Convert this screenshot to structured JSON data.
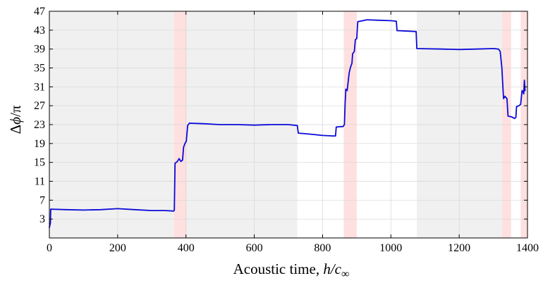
{
  "chart_data": {
    "type": "line",
    "title": "",
    "xlabel": {
      "prefix": "Acoustic time, ",
      "italic": "h/c",
      "subscript": "∞"
    },
    "ylabel": {
      "prefix": "Δ",
      "italic": "ϕ",
      "suffix": "/π"
    },
    "xlim": [
      0,
      1400
    ],
    "ylim": [
      -1,
      47
    ],
    "x_ticks": [
      0,
      200,
      400,
      600,
      800,
      1000,
      1200,
      1400
    ],
    "x_tick_labels": [
      "0",
      "200",
      "400",
      "600",
      "800",
      "1000",
      "1200",
      "1400"
    ],
    "y_ticks": [
      3,
      7,
      11,
      15,
      19,
      23,
      27,
      31,
      35,
      39,
      43,
      47
    ],
    "y_tick_labels": [
      "3",
      "7",
      "11",
      "15",
      "19",
      "23",
      "27",
      "31",
      "35",
      "39",
      "43",
      "47"
    ],
    "grid": true,
    "legend": "none",
    "colors": {
      "line": "#0a0ad8",
      "gray_band": "#f0f0f0",
      "red_band": "#ffe0e0",
      "grid": "#d6d6d6"
    },
    "gray_bands": [
      [
        0,
        365
      ],
      [
        400,
        726
      ],
      [
        1076,
        1325
      ]
    ],
    "red_bands": [
      [
        365,
        402
      ],
      [
        862,
        900
      ],
      [
        1325,
        1352
      ],
      [
        1380,
        1400
      ]
    ],
    "series": [
      {
        "points": [
          [
            0,
            1.2
          ],
          [
            3,
            2.2
          ],
          [
            4,
            5.1
          ],
          [
            50,
            5.0
          ],
          [
            100,
            4.9
          ],
          [
            150,
            5.0
          ],
          [
            200,
            5.2
          ],
          [
            250,
            5.0
          ],
          [
            300,
            4.8
          ],
          [
            340,
            4.8
          ],
          [
            364,
            4.7
          ],
          [
            366,
            4.9
          ],
          [
            368,
            14.8
          ],
          [
            375,
            15.2
          ],
          [
            380,
            15.8
          ],
          [
            385,
            15.2
          ],
          [
            390,
            15.5
          ],
          [
            393,
            18.2
          ],
          [
            397,
            19.0
          ],
          [
            401,
            19.5
          ],
          [
            405,
            22.8
          ],
          [
            410,
            23.3
          ],
          [
            450,
            23.2
          ],
          [
            500,
            23.0
          ],
          [
            550,
            23.0
          ],
          [
            600,
            22.9
          ],
          [
            650,
            23.0
          ],
          [
            700,
            23.0
          ],
          [
            726,
            22.8
          ],
          [
            729,
            21.2
          ],
          [
            760,
            21.0
          ],
          [
            800,
            20.7
          ],
          [
            830,
            20.6
          ],
          [
            838,
            20.6
          ],
          [
            840,
            22.5
          ],
          [
            860,
            22.6
          ],
          [
            864,
            23.0
          ],
          [
            866,
            27.5
          ],
          [
            868,
            30.5
          ],
          [
            872,
            30.2
          ],
          [
            878,
            34.0
          ],
          [
            882,
            35.2
          ],
          [
            886,
            36.0
          ],
          [
            888,
            38.0
          ],
          [
            893,
            38.5
          ],
          [
            896,
            41.0
          ],
          [
            900,
            41.2
          ],
          [
            903,
            44.8
          ],
          [
            930,
            45.2
          ],
          [
            960,
            45.1
          ],
          [
            1000,
            45.0
          ],
          [
            1016,
            44.9
          ],
          [
            1018,
            42.9
          ],
          [
            1050,
            42.8
          ],
          [
            1074,
            42.7
          ],
          [
            1076,
            39.1
          ],
          [
            1150,
            39.0
          ],
          [
            1200,
            38.9
          ],
          [
            1250,
            39.0
          ],
          [
            1300,
            39.1
          ],
          [
            1315,
            39.0
          ],
          [
            1320,
            38.5
          ],
          [
            1325,
            35.0
          ],
          [
            1328,
            31.0
          ],
          [
            1330,
            28.5
          ],
          [
            1334,
            29.0
          ],
          [
            1340,
            28.5
          ],
          [
            1343,
            24.8
          ],
          [
            1355,
            24.6
          ],
          [
            1362,
            24.3
          ],
          [
            1366,
            24.5
          ],
          [
            1368,
            26.8
          ],
          [
            1375,
            27.0
          ],
          [
            1380,
            27.3
          ],
          [
            1384,
            30.2
          ],
          [
            1387,
            30.0
          ],
          [
            1389,
            29.5
          ],
          [
            1391,
            32.4
          ],
          [
            1393,
            30.2
          ]
        ]
      }
    ]
  }
}
